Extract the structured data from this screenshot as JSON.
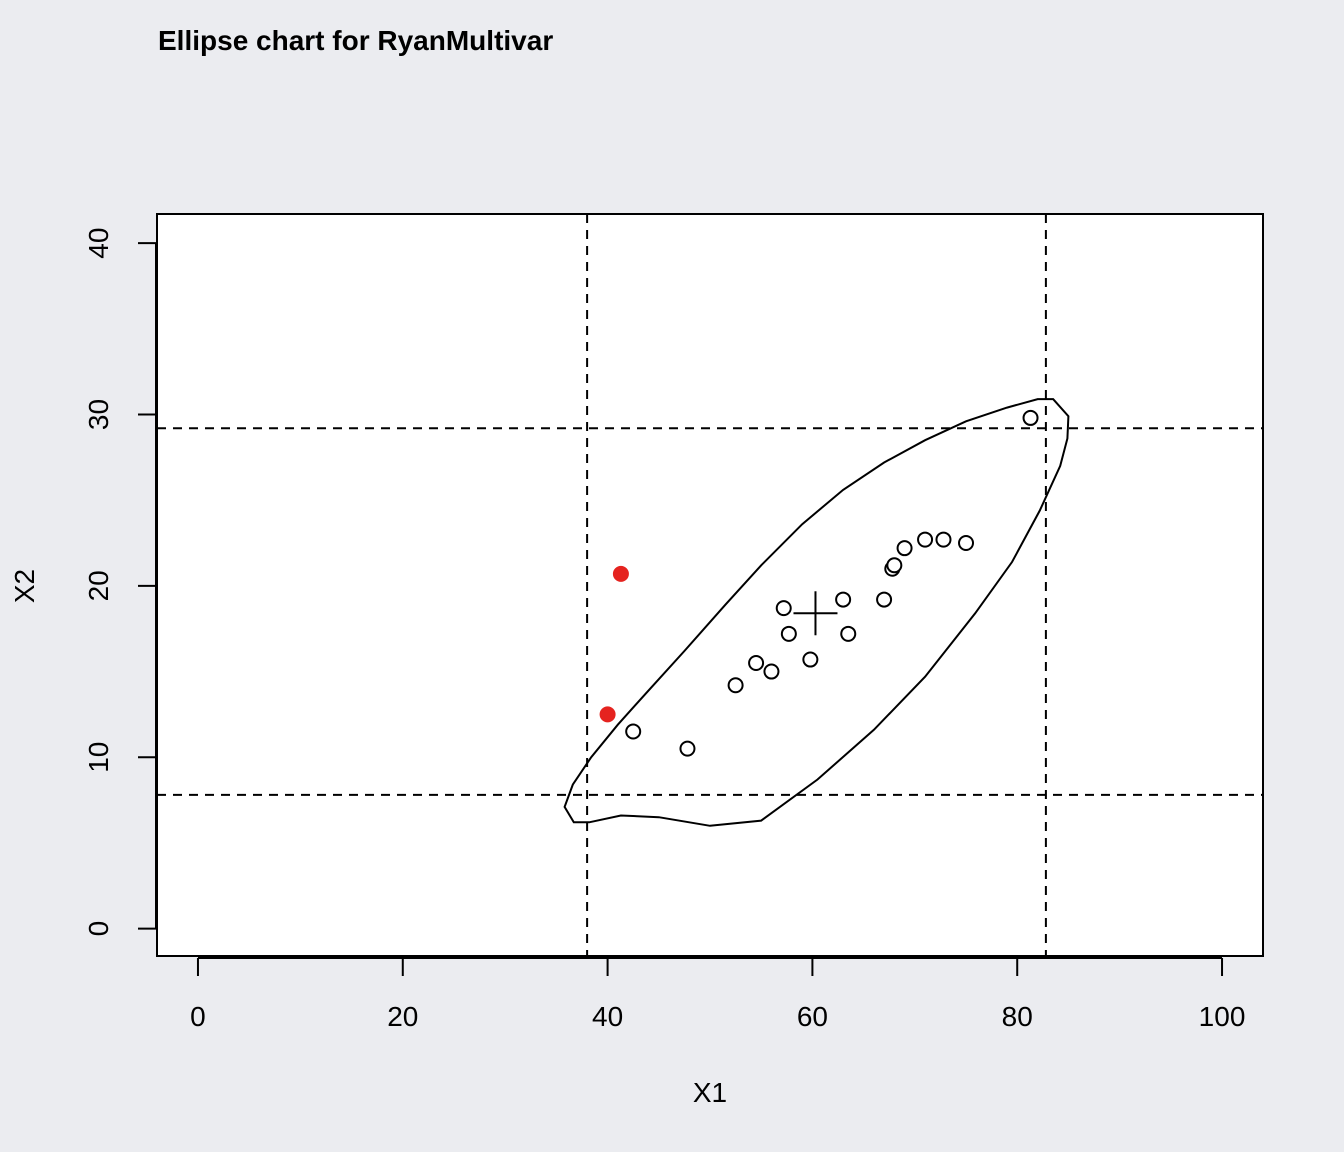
{
  "chart_data": {
    "type": "scatter",
    "title": "Ellipse chart for RyanMultivar",
    "xlabel": "X1",
    "ylabel": "X2",
    "xlim": [
      -4,
      104
    ],
    "ylim": [
      -1.6,
      41.7
    ],
    "xticks": [
      0,
      20,
      40,
      60,
      80,
      100
    ],
    "yticks": [
      0,
      10,
      20,
      30,
      40
    ],
    "grid": false,
    "legend": "none",
    "points_in_control": [
      [
        42.5,
        11.5
      ],
      [
        47.8,
        10.5
      ],
      [
        52.5,
        14.2
      ],
      [
        54.5,
        15.5
      ],
      [
        56.0,
        15.0
      ],
      [
        57.2,
        18.7
      ],
      [
        57.7,
        17.2
      ],
      [
        59.8,
        15.7
      ],
      [
        63.0,
        19.2
      ],
      [
        63.5,
        17.2
      ],
      [
        67.0,
        19.2
      ],
      [
        67.8,
        21.0
      ],
      [
        68.0,
        21.2
      ],
      [
        69.0,
        22.2
      ],
      [
        71.0,
        22.7
      ],
      [
        72.8,
        22.7
      ],
      [
        75.0,
        22.5
      ],
      [
        81.3,
        29.8
      ]
    ],
    "points_out_of_control": [
      [
        41.3,
        20.7
      ],
      [
        40.0,
        12.5
      ]
    ],
    "center": [
      60.3,
      18.4
    ],
    "ellipse": [
      [
        83.5,
        30.9
      ],
      [
        85.0,
        29.9
      ],
      [
        84.9,
        28.6
      ],
      [
        84.2,
        27.0
      ],
      [
        82.2,
        24.4
      ],
      [
        79.5,
        21.4
      ],
      [
        75.9,
        18.4
      ],
      [
        71.0,
        14.7
      ],
      [
        66.0,
        11.6
      ],
      [
        60.5,
        8.7
      ],
      [
        55.0,
        6.3
      ],
      [
        50.0,
        6.0
      ],
      [
        45.0,
        6.5
      ],
      [
        41.3,
        6.6
      ],
      [
        38.2,
        6.2
      ],
      [
        36.7,
        6.2
      ],
      [
        35.8,
        7.1
      ],
      [
        36.6,
        8.4
      ],
      [
        38.4,
        10.0
      ],
      [
        41.0,
        11.9
      ],
      [
        44.0,
        13.9
      ],
      [
        47.5,
        16.2
      ],
      [
        51.5,
        18.9
      ],
      [
        55.0,
        21.2
      ],
      [
        59.0,
        23.6
      ],
      [
        63.0,
        25.6
      ],
      [
        67.0,
        27.2
      ],
      [
        71.0,
        28.5
      ],
      [
        75.0,
        29.6
      ],
      [
        79.0,
        30.4
      ],
      [
        82.0,
        30.9
      ],
      [
        83.5,
        30.9
      ]
    ],
    "control_limits": {
      "x": [
        38.0,
        82.8
      ],
      "y": [
        7.8,
        29.2
      ]
    },
    "colors": {
      "background": "#EBECF0",
      "plot_area": "#FFFFFF",
      "out_of_control": "#E5231F",
      "ink": "#000000"
    }
  }
}
